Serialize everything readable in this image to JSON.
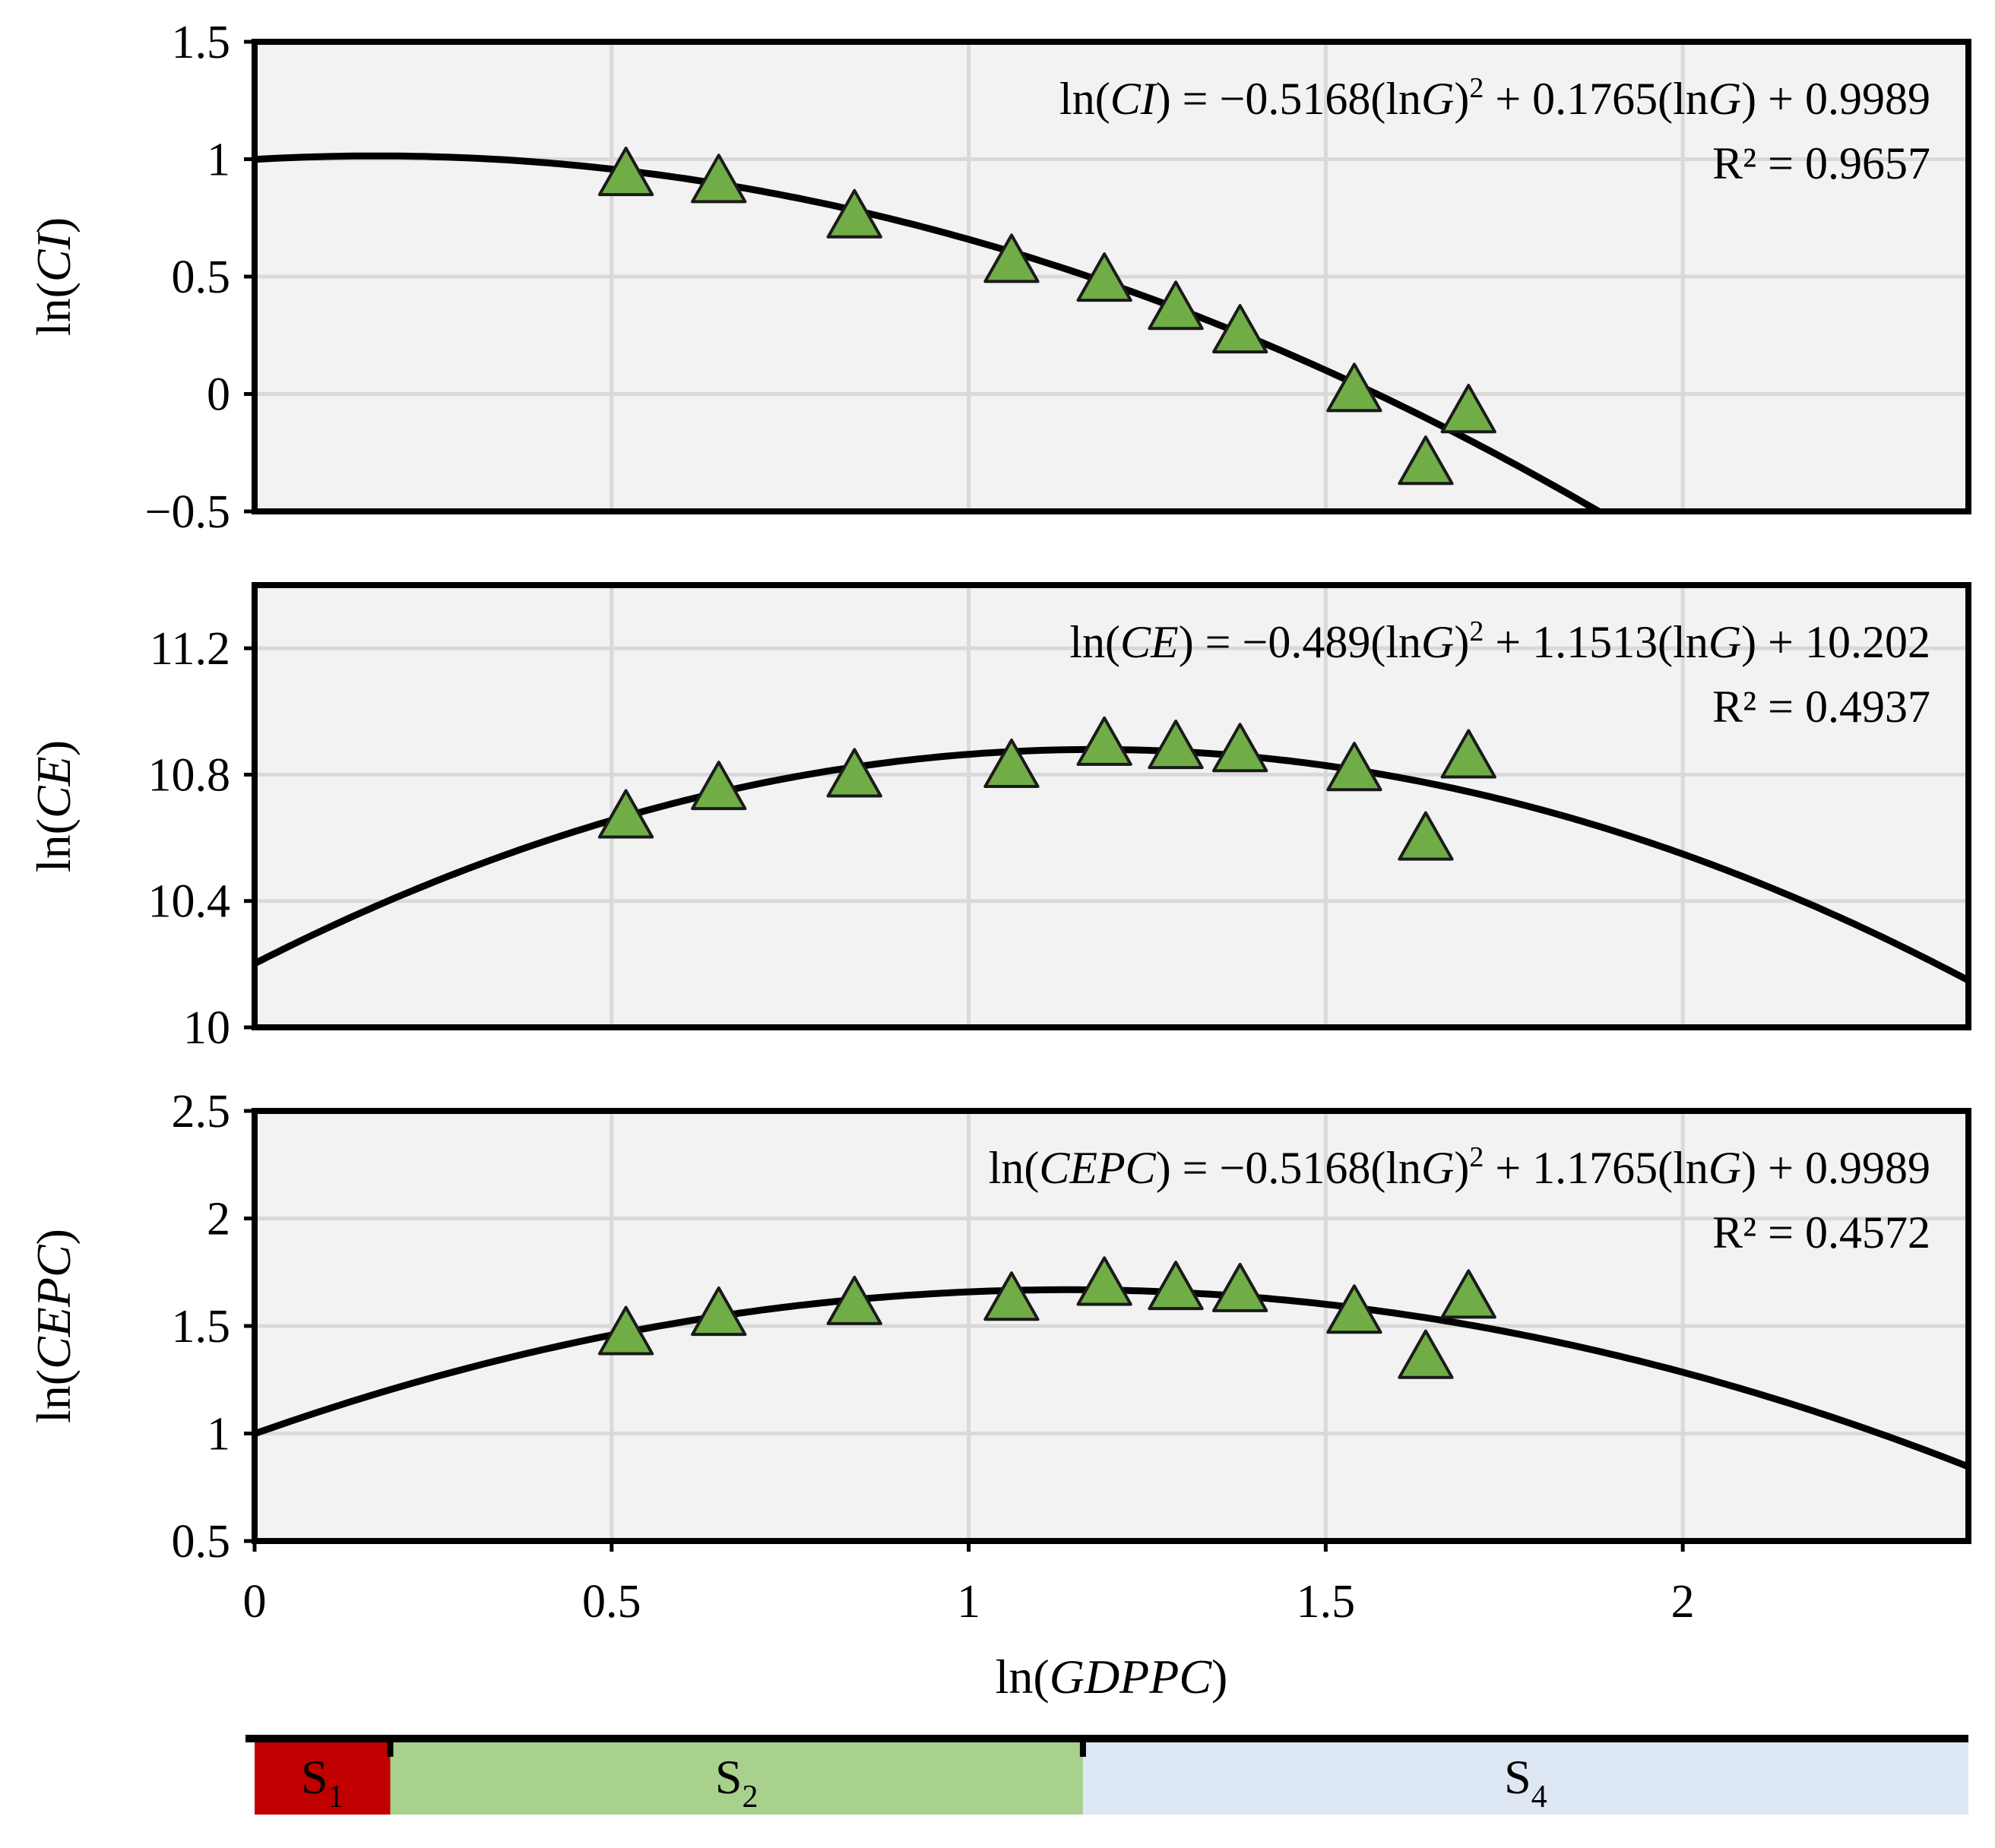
{
  "chart_data": [
    {
      "type": "scatter",
      "ylabel": {
        "prefix": "ln(",
        "var": "CI",
        "suffix": ")"
      },
      "ylim": [
        -0.5,
        1.5
      ],
      "yticks": [
        -0.5,
        0,
        0.5,
        1,
        1.5
      ],
      "ytick_labels": [
        "−0.5",
        "0",
        "0.5",
        "1",
        "1.5"
      ],
      "points": [
        [
          0.52,
          0.94
        ],
        [
          0.65,
          0.91
        ],
        [
          0.84,
          0.76
        ],
        [
          1.06,
          0.57
        ],
        [
          1.19,
          0.49
        ],
        [
          1.29,
          0.37
        ],
        [
          1.38,
          0.27
        ],
        [
          1.54,
          0.02
        ],
        [
          1.64,
          -0.29
        ],
        [
          1.7,
          -0.07
        ]
      ],
      "fit": {
        "a": -0.5168,
        "b": 0.1765,
        "c": 0.9989
      },
      "equation": {
        "prefix": "ln(",
        "var": "CI",
        "mid": ") = −0.5168(ln",
        "g1": "G",
        "p1": ")",
        "two": "2",
        "m2": " + 0.1765(ln",
        "g2": "G",
        "end": ") + 0.9989"
      },
      "r2": "R² = 0.9657"
    },
    {
      "type": "scatter",
      "ylabel": {
        "prefix": "ln(",
        "var": "CE",
        "suffix": ")"
      },
      "ylim": [
        10,
        11.4
      ],
      "yticks": [
        10,
        10.4,
        10.8,
        11.2
      ],
      "ytick_labels": [
        "10",
        "10.4",
        "10.8",
        "11.2"
      ],
      "points": [
        [
          0.52,
          10.67
        ],
        [
          0.65,
          10.76
        ],
        [
          0.84,
          10.8
        ],
        [
          1.06,
          10.83
        ],
        [
          1.19,
          10.9
        ],
        [
          1.29,
          10.89
        ],
        [
          1.38,
          10.88
        ],
        [
          1.54,
          10.82
        ],
        [
          1.64,
          10.6
        ],
        [
          1.7,
          10.86
        ]
      ],
      "fit": {
        "a": -0.489,
        "b": 1.1513,
        "c": 10.202
      },
      "equation": {
        "prefix": "ln(",
        "var": "CE",
        "mid": ") = −0.489(ln",
        "g1": "G",
        "p1": ")",
        "two": "2",
        "m2": " + 1.1513(ln",
        "g2": "G",
        "end": ") + 10.202"
      },
      "r2": "R² = 0.4937"
    },
    {
      "type": "scatter",
      "ylabel": {
        "prefix": "ln(",
        "var": "CEPC",
        "suffix": ")"
      },
      "ylim": [
        0.5,
        2.5
      ],
      "yticks": [
        0.5,
        1,
        1.5,
        2,
        2.5
      ],
      "ytick_labels": [
        "0.5",
        "1",
        "1.5",
        "2",
        "2.5"
      ],
      "points": [
        [
          0.52,
          1.47
        ],
        [
          0.65,
          1.56
        ],
        [
          0.84,
          1.61
        ],
        [
          1.06,
          1.63
        ],
        [
          1.19,
          1.7
        ],
        [
          1.29,
          1.68
        ],
        [
          1.38,
          1.67
        ],
        [
          1.54,
          1.57
        ],
        [
          1.64,
          1.36
        ],
        [
          1.7,
          1.64
        ]
      ],
      "fit": {
        "a": -0.5168,
        "b": 1.1765,
        "c": 0.9989
      },
      "equation": {
        "prefix": "ln(",
        "var": "CEPC",
        "mid": ") = −0.5168(ln",
        "g1": "G",
        "p1": ")",
        "two": "2",
        "m2": " + 1.1765(ln",
        "g2": "G",
        "end": ") + 0.9989"
      },
      "r2": "R² = 0.4572"
    }
  ],
  "x_axis": {
    "xlim": [
      0,
      2.4
    ],
    "xticks": [
      0,
      0.5,
      1,
      1.5,
      2
    ],
    "xtick_labels": [
      "0",
      "0.5",
      "1",
      "1.5",
      "2"
    ],
    "label": {
      "prefix": "ln(",
      "var": "GDPPC",
      "suffix": ")"
    }
  },
  "stages": [
    {
      "label": "S",
      "sub": "1",
      "from": 0,
      "to": 0.19,
      "color": "#c00000"
    },
    {
      "label": "S",
      "sub": "2",
      "from": 0.19,
      "to": 1.16,
      "color": "#a9d18e"
    },
    {
      "label": "S",
      "sub": "4",
      "from": 1.16,
      "to": 2.4,
      "color": "#dde8f4"
    }
  ],
  "colors": {
    "plot_bg": "#f2f2f2",
    "grid": "#d9d9d9",
    "marker_fill": "#70ad47",
    "marker_stroke": "#1a1a1a",
    "curve": "#000000"
  }
}
